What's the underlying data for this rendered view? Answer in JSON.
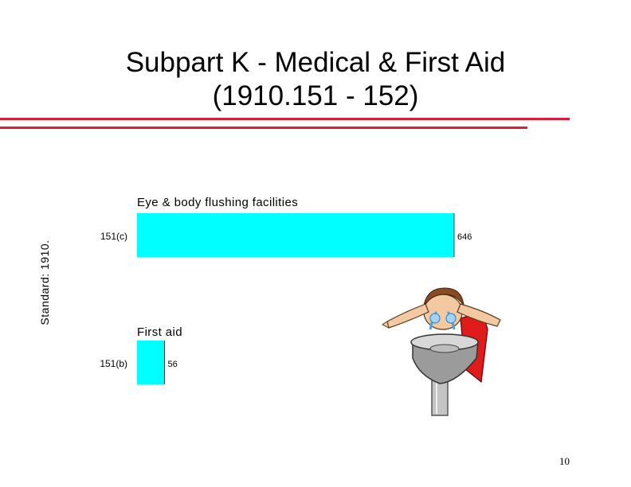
{
  "slide": {
    "title_line1": "Subpart K - Medical & First Aid",
    "title_line2": "(1910.151 - 152)",
    "page_number": "10"
  },
  "colors": {
    "rule": "#dd1c3a",
    "bar": "#00ffff",
    "text": "#000000"
  },
  "chart_data": {
    "type": "bar",
    "orientation": "horizontal",
    "ylabel": "Standard: 1910.",
    "categories": [
      "151(c)",
      "151(b)"
    ],
    "category_titles": [
      "Eye & body flushing facilities",
      "First aid"
    ],
    "values": [
      646,
      56
    ],
    "xlim": [
      0,
      646
    ],
    "grid": false,
    "legend": "none"
  },
  "illustration": {
    "icon": "person-using-eyewash-station-icon"
  }
}
